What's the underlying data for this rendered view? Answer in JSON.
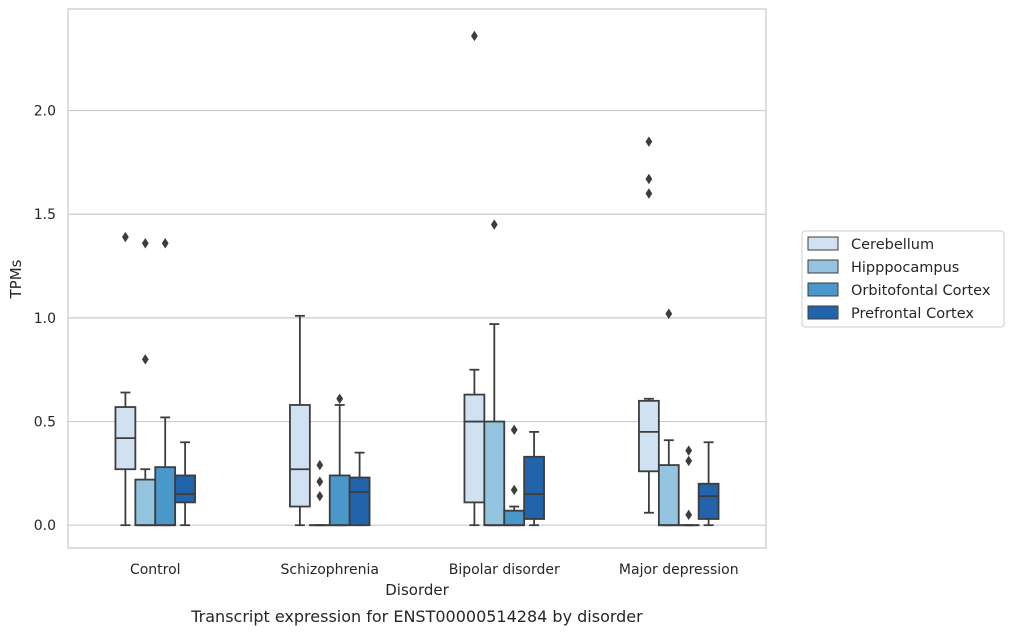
{
  "chart_data": {
    "type": "boxplot",
    "caption": "Transcript expression for ENST00000514284 by disorder",
    "xlabel": "Disorder",
    "ylabel": "TPMs",
    "ylim": [
      -0.11,
      2.49
    ],
    "yticks": [
      "0.0",
      "0.5",
      "1.0",
      "1.5",
      "2.0"
    ],
    "grid": "horizontal",
    "legend_position": "right",
    "categories": [
      "Control",
      "Schizophrenia",
      "Bipolar disorder",
      "Major depression"
    ],
    "series": [
      {
        "name": "Cerebellum",
        "color": "#d0e1f2",
        "boxes": [
          {
            "whislo": 0.0,
            "q1": 0.27,
            "med": 0.42,
            "q3": 0.57,
            "whishi": 0.64,
            "fliers": [
              1.39
            ]
          },
          {
            "whislo": 0.0,
            "q1": 0.09,
            "med": 0.27,
            "q3": 0.58,
            "whishi": 1.01,
            "fliers": []
          },
          {
            "whislo": 0.0,
            "q1": 0.11,
            "med": 0.5,
            "q3": 0.63,
            "whishi": 0.75,
            "fliers": [
              2.36
            ]
          },
          {
            "whislo": 0.06,
            "q1": 0.26,
            "med": 0.45,
            "q3": 0.6,
            "whishi": 0.61,
            "fliers": [
              1.85,
              1.67,
              1.6
            ]
          }
        ]
      },
      {
        "name": "Hipppocampus",
        "color": "#94c4df",
        "boxes": [
          {
            "whislo": 0.0,
            "q1": 0.0,
            "med": 0.0,
            "q3": 0.22,
            "whishi": 0.27,
            "fliers": [
              1.36,
              0.8
            ]
          },
          {
            "whislo": 0.0,
            "q1": 0.0,
            "med": 0.0,
            "q3": 0.0,
            "whishi": 0.0,
            "fliers": [
              0.29,
              0.21,
              0.14
            ]
          },
          {
            "whislo": 0.0,
            "q1": 0.0,
            "med": 0.0,
            "q3": 0.5,
            "whishi": 0.97,
            "fliers": [
              1.45
            ]
          },
          {
            "whislo": 0.0,
            "q1": 0.0,
            "med": 0.0,
            "q3": 0.29,
            "whishi": 0.41,
            "fliers": [
              1.02
            ]
          }
        ]
      },
      {
        "name": "Orbitofontal Cortex",
        "color": "#4a98c9",
        "boxes": [
          {
            "whislo": 0.0,
            "q1": 0.0,
            "med": 0.0,
            "q3": 0.28,
            "whishi": 0.52,
            "fliers": [
              1.36
            ]
          },
          {
            "whislo": 0.0,
            "q1": 0.0,
            "med": 0.0,
            "q3": 0.24,
            "whishi": 0.58,
            "fliers": [
              0.61
            ]
          },
          {
            "whislo": 0.0,
            "q1": 0.0,
            "med": 0.0,
            "q3": 0.07,
            "whishi": 0.09,
            "fliers": [
              0.46,
              0.17
            ]
          },
          {
            "whislo": 0.0,
            "q1": 0.0,
            "med": 0.0,
            "q3": 0.0,
            "whishi": 0.0,
            "fliers": [
              0.36,
              0.31,
              0.05
            ]
          }
        ]
      },
      {
        "name": "Prefrontal Cortex",
        "color": "#2264ab",
        "boxes": [
          {
            "whislo": 0.0,
            "q1": 0.11,
            "med": 0.15,
            "q3": 0.24,
            "whishi": 0.4,
            "fliers": []
          },
          {
            "whislo": 0.0,
            "q1": 0.0,
            "med": 0.16,
            "q3": 0.23,
            "whishi": 0.35,
            "fliers": []
          },
          {
            "whislo": 0.0,
            "q1": 0.03,
            "med": 0.15,
            "q3": 0.33,
            "whishi": 0.45,
            "fliers": []
          },
          {
            "whislo": 0.0,
            "q1": 0.03,
            "med": 0.14,
            "q3": 0.2,
            "whishi": 0.4,
            "fliers": []
          }
        ]
      }
    ]
  }
}
